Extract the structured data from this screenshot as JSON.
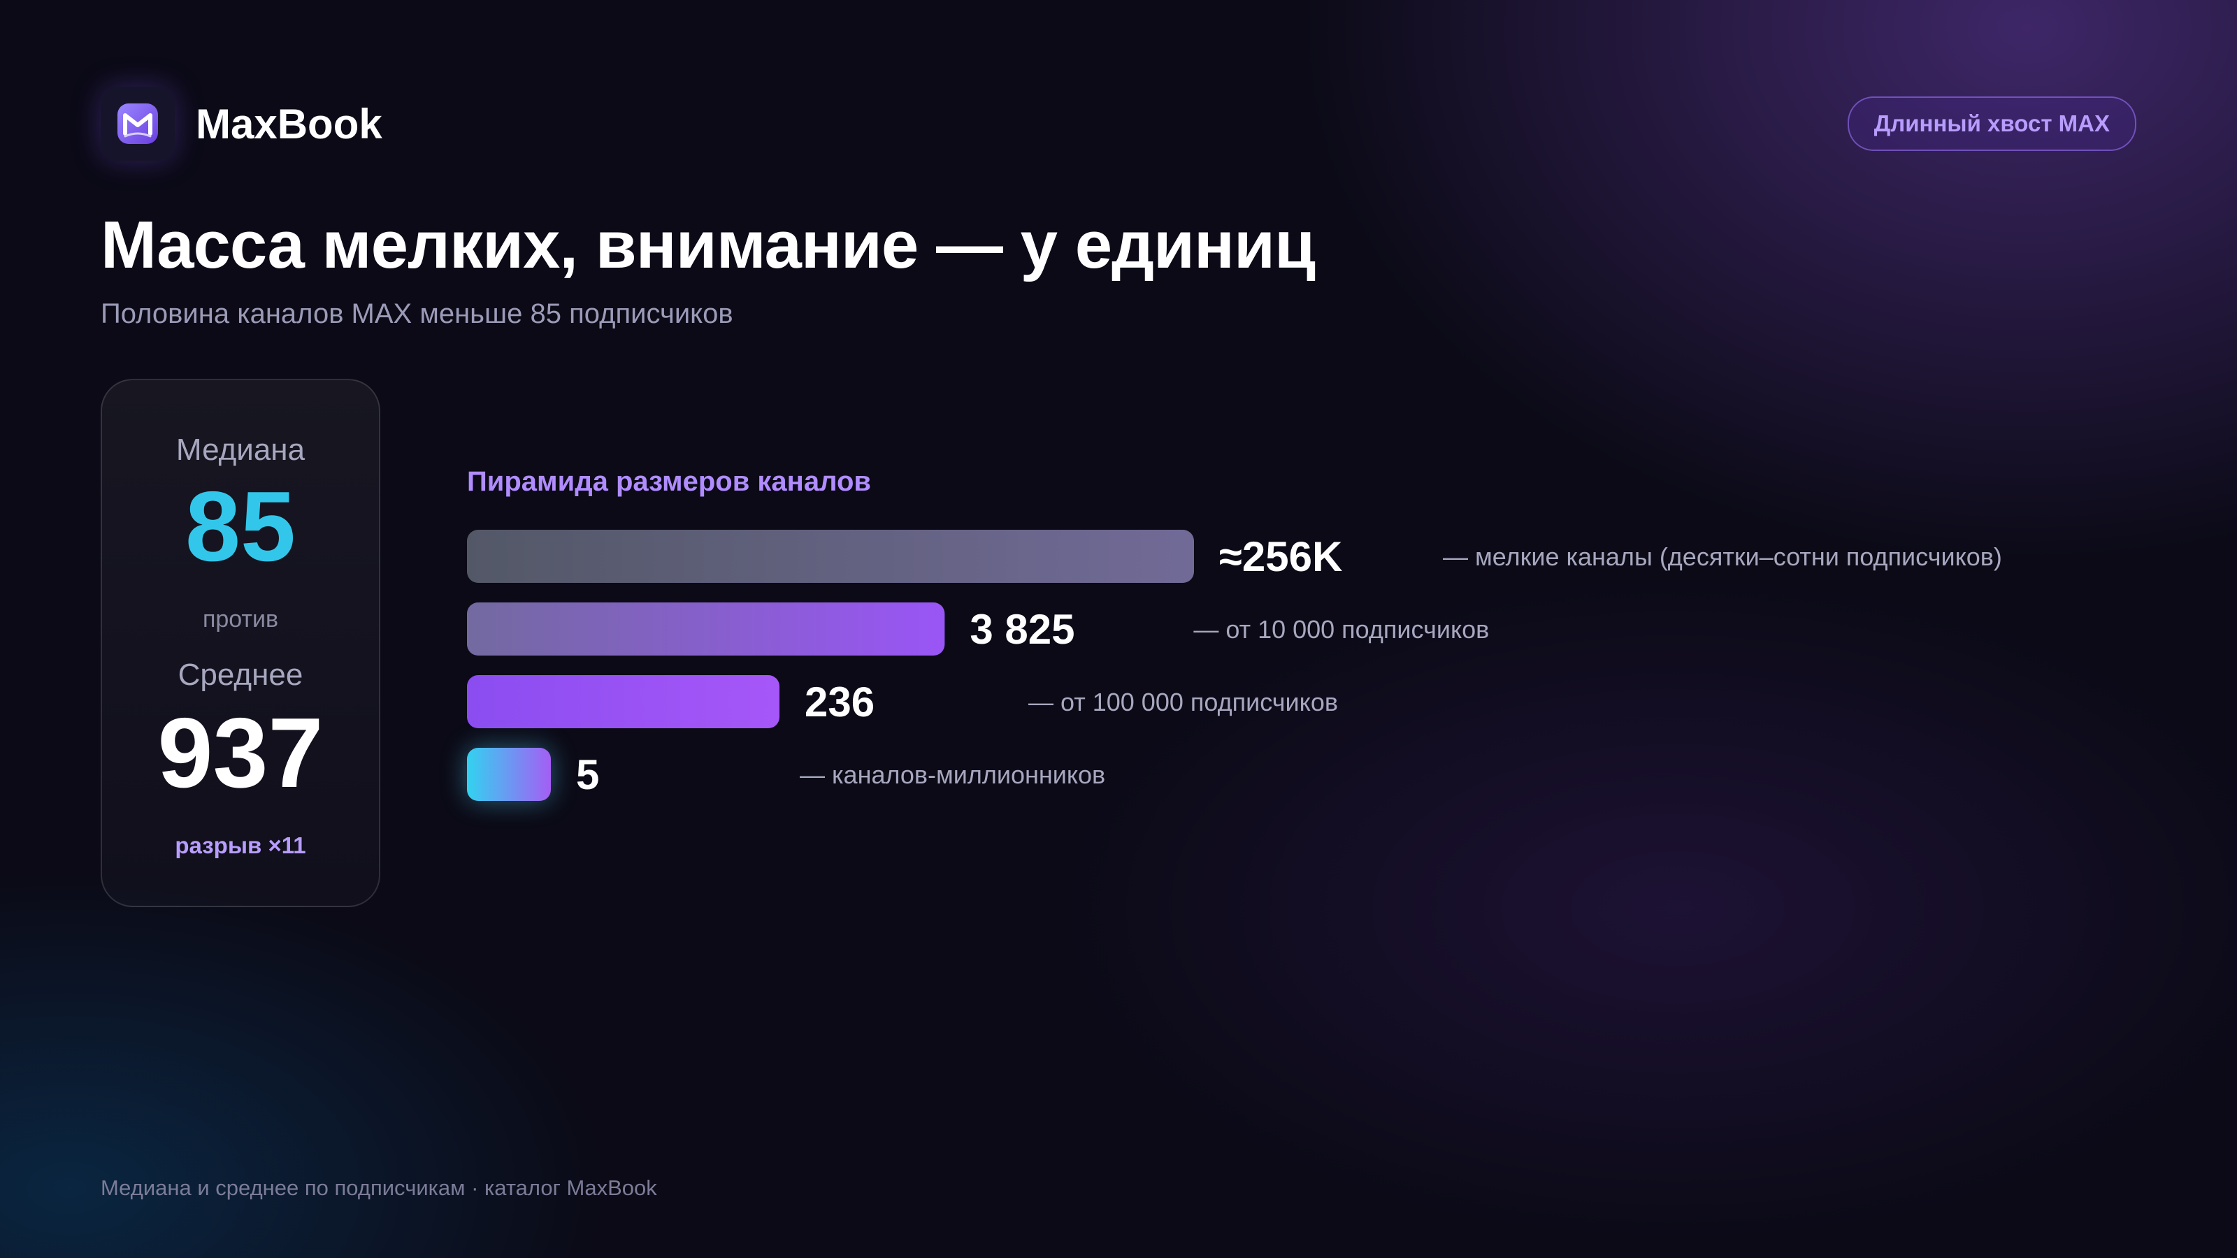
{
  "brand": {
    "name": "MaxBook",
    "logo_icon": "book-m-logo-icon"
  },
  "tag": "Длинный хвост MAX",
  "title": "Масса мелких, внимание — у единиц",
  "subtitle": "Половина каналов MAX меньше 85 подписчиков",
  "stats": {
    "median_label": "Медиана",
    "median_value": "85",
    "vs_label": "против",
    "average_label": "Среднее",
    "average_value": "937",
    "gap_label": "разрыв ×11"
  },
  "chart_data": {
    "type": "bar",
    "orientation": "horizontal",
    "title": "Пирамида размеров каналов",
    "scale": "log",
    "categories": [
      "— мелкие каналы (десятки–сотни подписчиков)",
      "— от 10 000 подписчиков",
      "— от 100 000 подписчиков",
      "— каналов-миллионников"
    ],
    "values": [
      256000,
      3825,
      236,
      5
    ],
    "value_labels": [
      "≈256K",
      "3 825",
      "236",
      "5"
    ],
    "colors": [
      [
        "#535867",
        "#716a97"
      ],
      [
        "#736aa0",
        "#9a55f6"
      ],
      [
        "#8b4df0",
        "#a657f8"
      ],
      [
        "#33d2f0",
        "#a45ef4"
      ]
    ]
  },
  "footnote": "Медиана и среднее по подписчикам · каталог MaxBook"
}
